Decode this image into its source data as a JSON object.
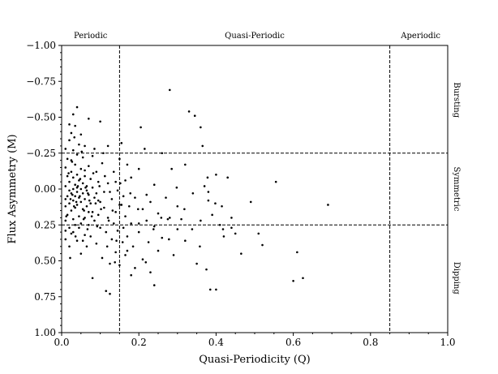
{
  "chart_data": {
    "type": "scatter",
    "xlabel": "Quasi-Periodicity (Q)",
    "ylabel": "Flux Asymmetry (M)",
    "xlim": [
      0.0,
      1.0
    ],
    "ylim": [
      -1.0,
      1.0
    ],
    "y_inverted": true,
    "x_ticks": [
      "0.0",
      "0.2",
      "0.4",
      "0.6",
      "0.8",
      "1.0"
    ],
    "y_ticks": [
      "−1.00",
      "−0.75",
      "−0.50",
      "−0.25",
      "0.00",
      "0.25",
      "0.50",
      "0.75",
      "1.00"
    ],
    "x_tick_values": [
      0.0,
      0.2,
      0.4,
      0.6,
      0.8,
      1.0
    ],
    "y_tick_values": [
      -1.0,
      -0.75,
      -0.5,
      -0.25,
      0.0,
      0.25,
      0.5,
      0.75,
      1.0
    ],
    "vlines": [
      0.15,
      0.85
    ],
    "hlines": [
      -0.25,
      0.25
    ],
    "top_labels": [
      {
        "text": "Periodic",
        "x": 0.075
      },
      {
        "text": "Quasi-Periodic",
        "x": 0.5
      },
      {
        "text": "Aperiodic",
        "x": 0.93
      }
    ],
    "right_labels": [
      {
        "text": "Bursting",
        "y": -0.62
      },
      {
        "text": "Symmetric",
        "y": 0.0
      },
      {
        "text": "Dipping",
        "y": 0.62
      }
    ],
    "grid": false,
    "marker_color": "#000000",
    "points": [
      [
        0.01,
        0.29
      ],
      [
        0.01,
        0.12
      ],
      [
        0.01,
        -0.02
      ],
      [
        0.01,
        0.07
      ],
      [
        0.01,
        -0.15
      ],
      [
        0.01,
        0.22
      ],
      [
        0.01,
        0.35
      ],
      [
        0.01,
        -0.28
      ],
      [
        0.015,
        0.05
      ],
      [
        0.015,
        -0.09
      ],
      [
        0.015,
        0.18
      ],
      [
        0.015,
        -0.21
      ],
      [
        0.02,
        0.01
      ],
      [
        0.02,
        -0.05
      ],
      [
        0.02,
        0.1
      ],
      [
        0.02,
        0.27
      ],
      [
        0.02,
        -0.34
      ],
      [
        0.02,
        -0.45
      ],
      [
        0.02,
        0.4
      ],
      [
        0.025,
        -0.12
      ],
      [
        0.025,
        0.03
      ],
      [
        0.025,
        0.15
      ],
      [
        0.025,
        -0.2
      ],
      [
        0.025,
        0.31
      ],
      [
        0.025,
        -0.39
      ],
      [
        0.03,
        0.0
      ],
      [
        0.03,
        -0.08
      ],
      [
        0.03,
        0.08
      ],
      [
        0.03,
        0.21
      ],
      [
        0.03,
        -0.27
      ],
      [
        0.03,
        -0.52
      ],
      [
        0.03,
        0.3
      ],
      [
        0.035,
        -0.03
      ],
      [
        0.035,
        0.05
      ],
      [
        0.035,
        -0.17
      ],
      [
        0.035,
        0.13
      ],
      [
        0.035,
        0.25
      ],
      [
        0.035,
        -0.44
      ],
      [
        0.04,
        -0.1
      ],
      [
        0.04,
        0.02
      ],
      [
        0.04,
        -0.01
      ],
      [
        0.04,
        0.11
      ],
      [
        0.04,
        -0.24
      ],
      [
        0.04,
        0.36
      ],
      [
        0.04,
        -0.57
      ],
      [
        0.045,
        0.06
      ],
      [
        0.045,
        -0.06
      ],
      [
        0.045,
        0.19
      ],
      [
        0.045,
        -0.31
      ],
      [
        0.05,
        0.0
      ],
      [
        0.05,
        0.09
      ],
      [
        0.05,
        -0.14
      ],
      [
        0.05,
        0.24
      ],
      [
        0.05,
        -0.38
      ],
      [
        0.05,
        0.45
      ],
      [
        0.055,
        -0.04
      ],
      [
        0.055,
        0.03
      ],
      [
        0.055,
        0.14
      ],
      [
        0.055,
        -0.22
      ],
      [
        0.06,
        0.07
      ],
      [
        0.06,
        -0.09
      ],
      [
        0.06,
        0.2
      ],
      [
        0.06,
        0.32
      ],
      [
        0.06,
        -0.3
      ],
      [
        0.065,
        0.01
      ],
      [
        0.065,
        -0.02
      ],
      [
        0.065,
        0.12
      ],
      [
        0.065,
        0.4
      ],
      [
        0.07,
        -0.16
      ],
      [
        0.07,
        0.04
      ],
      [
        0.07,
        0.25
      ],
      [
        0.07,
        -0.49
      ],
      [
        0.075,
        0.1
      ],
      [
        0.075,
        -0.07
      ],
      [
        0.075,
        0.33
      ],
      [
        0.08,
        -0.01
      ],
      [
        0.08,
        0.16
      ],
      [
        0.08,
        -0.23
      ],
      [
        0.08,
        0.62
      ],
      [
        0.085,
        0.06
      ],
      [
        0.085,
        0.22
      ],
      [
        0.09,
        -0.12
      ],
      [
        0.09,
        0.03
      ],
      [
        0.09,
        0.38
      ],
      [
        0.095,
        0.18
      ],
      [
        0.095,
        -0.05
      ],
      [
        0.1,
        0.09
      ],
      [
        0.1,
        0.27
      ],
      [
        0.1,
        -0.47
      ],
      [
        0.105,
        0.48
      ],
      [
        0.105,
        -0.18
      ],
      [
        0.11,
        0.13
      ],
      [
        0.11,
        0.02
      ],
      [
        0.115,
        0.3
      ],
      [
        0.115,
        0.71
      ],
      [
        0.12,
        -0.04
      ],
      [
        0.12,
        0.2
      ],
      [
        0.12,
        -0.3
      ],
      [
        0.125,
        0.52
      ],
      [
        0.125,
        0.73
      ],
      [
        0.13,
        0.07
      ],
      [
        0.13,
        0.35
      ],
      [
        0.135,
        -0.12
      ],
      [
        0.135,
        0.24
      ],
      [
        0.14,
        0.16
      ],
      [
        0.14,
        0.44
      ],
      [
        0.145,
        0.01
      ],
      [
        0.145,
        0.29
      ],
      [
        0.15,
        -0.21
      ],
      [
        0.15,
        0.53
      ],
      [
        0.155,
        0.11
      ],
      [
        0.155,
        -0.32
      ],
      [
        0.16,
        0.27
      ],
      [
        0.16,
        0.05
      ],
      [
        0.165,
        0.19
      ],
      [
        0.165,
        0.46
      ],
      [
        0.17,
        -0.17
      ],
      [
        0.17,
        0.33
      ],
      [
        0.175,
        0.12
      ],
      [
        0.18,
        0.24
      ],
      [
        0.18,
        -0.08
      ],
      [
        0.185,
        0.4
      ],
      [
        0.19,
        0.06
      ],
      [
        0.19,
        0.55
      ],
      [
        0.2,
        -0.14
      ],
      [
        0.2,
        0.3
      ],
      [
        0.205,
        -0.43
      ],
      [
        0.21,
        0.14
      ],
      [
        0.21,
        0.49
      ],
      [
        0.215,
        -0.28
      ],
      [
        0.22,
        0.22
      ],
      [
        0.22,
        0.04
      ],
      [
        0.225,
        0.37
      ],
      [
        0.23,
        0.09
      ],
      [
        0.23,
        0.58
      ],
      [
        0.24,
        0.26
      ],
      [
        0.24,
        0.67
      ],
      [
        0.25,
        0.17
      ],
      [
        0.25,
        0.43
      ],
      [
        0.26,
        -0.25
      ],
      [
        0.26,
        0.34
      ],
      [
        0.27,
        0.06
      ],
      [
        0.275,
        0.21
      ],
      [
        0.28,
        -0.69
      ],
      [
        0.285,
        -0.14
      ],
      [
        0.29,
        0.46
      ],
      [
        0.3,
        0.28
      ],
      [
        0.3,
        0.12
      ],
      [
        0.31,
        0.21
      ],
      [
        0.32,
        0.36
      ],
      [
        0.33,
        -0.54
      ],
      [
        0.34,
        0.03
      ],
      [
        0.345,
        -0.51
      ],
      [
        0.35,
        0.52
      ],
      [
        0.36,
        -0.43
      ],
      [
        0.36,
        0.22
      ],
      [
        0.365,
        -0.3
      ],
      [
        0.37,
        -0.02
      ],
      [
        0.375,
        0.56
      ],
      [
        0.38,
        0.08
      ],
      [
        0.385,
        0.7
      ],
      [
        0.39,
        0.18
      ],
      [
        0.4,
        -0.1
      ],
      [
        0.4,
        0.7
      ],
      [
        0.41,
        0.25
      ],
      [
        0.415,
        0.12
      ],
      [
        0.42,
        0.33
      ],
      [
        0.43,
        -0.08
      ],
      [
        0.44,
        0.2
      ],
      [
        0.45,
        0.31
      ],
      [
        0.465,
        0.45
      ],
      [
        0.49,
        0.09
      ],
      [
        0.51,
        0.31
      ],
      [
        0.52,
        0.39
      ],
      [
        0.555,
        -0.05
      ],
      [
        0.6,
        0.64
      ],
      [
        0.61,
        0.44
      ],
      [
        0.625,
        0.62
      ],
      [
        0.69,
        0.11
      ],
      [
        0.28,
        0.2
      ],
      [
        0.18,
        0.6
      ],
      [
        0.17,
        0.43
      ],
      [
        0.125,
        0.02
      ],
      [
        0.06,
        -0.13
      ],
      [
        0.14,
        -0.05
      ],
      [
        0.095,
        0.08
      ],
      [
        0.07,
        0.16
      ],
      [
        0.15,
        0.11
      ],
      [
        0.045,
        0.27
      ],
      [
        0.033,
        -0.36
      ],
      [
        0.022,
        0.48
      ],
      [
        0.108,
        -0.25
      ],
      [
        0.2,
        0.24
      ],
      [
        0.24,
        -0.03
      ],
      [
        0.32,
        -0.17
      ],
      [
        0.38,
        0.02
      ],
      [
        0.44,
        0.27
      ],
      [
        0.165,
        -0.06
      ],
      [
        0.055,
        0.36
      ],
      [
        0.085,
        -0.28
      ],
      [
        0.012,
        0.19
      ],
      [
        0.018,
        -0.11
      ],
      [
        0.028,
        0.04
      ],
      [
        0.038,
        0.09
      ],
      [
        0.048,
        -0.07
      ],
      [
        0.058,
        0.15
      ],
      [
        0.068,
        0.03
      ],
      [
        0.078,
        0.19
      ],
      [
        0.088,
        0.1
      ],
      [
        0.098,
        -0.02
      ],
      [
        0.118,
        0.4
      ],
      [
        0.138,
        0.51
      ],
      [
        0.158,
        0.37
      ],
      [
        0.178,
        0.03
      ],
      [
        0.198,
        0.14
      ],
      [
        0.218,
        0.51
      ],
      [
        0.238,
        0.28
      ],
      [
        0.258,
        0.2
      ],
      [
        0.278,
        0.35
      ],
      [
        0.298,
        -0.01
      ],
      [
        0.318,
        0.14
      ],
      [
        0.338,
        0.28
      ],
      [
        0.358,
        0.4
      ],
      [
        0.378,
        -0.08
      ],
      [
        0.398,
        0.1
      ],
      [
        0.418,
        0.28
      ],
      [
        0.023,
        0.07
      ],
      [
        0.027,
        -0.19
      ],
      [
        0.032,
        0.12
      ],
      [
        0.036,
        0.33
      ],
      [
        0.042,
        -0.02
      ],
      [
        0.047,
        0.05
      ],
      [
        0.052,
        -0.26
      ],
      [
        0.057,
        0.21
      ],
      [
        0.062,
        -0.01
      ],
      [
        0.067,
        0.28
      ],
      [
        0.072,
        0.08
      ],
      [
        0.082,
        -0.11
      ],
      [
        0.092,
        0.26
      ],
      [
        0.102,
        0.14
      ],
      [
        0.112,
        -0.09
      ],
      [
        0.122,
        0.22
      ],
      [
        0.132,
        0.15
      ],
      [
        0.142,
        0.36
      ],
      [
        0.152,
        -0.04
      ]
    ]
  }
}
